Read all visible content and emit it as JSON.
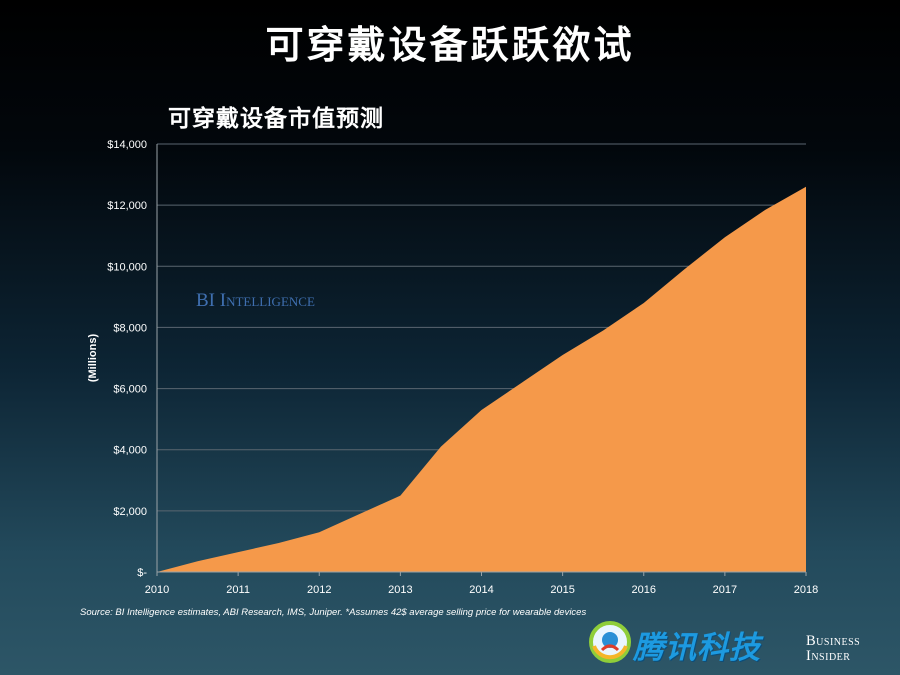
{
  "slide": {
    "title": "可穿戴设备跃跃欲试"
  },
  "chart_data": {
    "type": "area",
    "title": "可穿戴设备市值预测",
    "xlabel": "",
    "ylabel": "(Millions)",
    "x_ticks": [
      "2010",
      "2011",
      "2012",
      "2013",
      "2014",
      "2015",
      "2016",
      "2017",
      "2018"
    ],
    "y_ticks": [
      "$-",
      "$2,000",
      "$4,000",
      "$6,000",
      "$8,000",
      "$10,000",
      "$12,000",
      "$14,000"
    ],
    "ylim": [
      0,
      14000
    ],
    "xlim": [
      2010,
      2018
    ],
    "grid": true,
    "series": [
      {
        "color": "#f5994a",
        "points": [
          [
            2010,
            0
          ],
          [
            2010.5,
            350
          ],
          [
            2011,
            650
          ],
          [
            2011.5,
            950
          ],
          [
            2012,
            1300
          ],
          [
            2012.5,
            1900
          ],
          [
            2013,
            2500
          ],
          [
            2013.5,
            4100
          ],
          [
            2014,
            5300
          ],
          [
            2014.5,
            6200
          ],
          [
            2015,
            7100
          ],
          [
            2015.5,
            7900
          ],
          [
            2016,
            8800
          ],
          [
            2016.5,
            9900
          ],
          [
            2017,
            10950
          ],
          [
            2017.5,
            11850
          ],
          [
            2018,
            12600
          ]
        ]
      }
    ],
    "watermark": "BI Intelligence",
    "source": "Source: BI Intelligence estimates, ABI Research, IMS, Juniper. *Assumes 42$ average selling price for wearable devices"
  },
  "logos": {
    "tencent": "腾讯科技",
    "business_insider_line1": "Business",
    "business_insider_line2": "Insider"
  },
  "colors": {
    "area": "#f5994a",
    "watermark": "#3f6fb0",
    "tencent": "#1d9ae0"
  }
}
